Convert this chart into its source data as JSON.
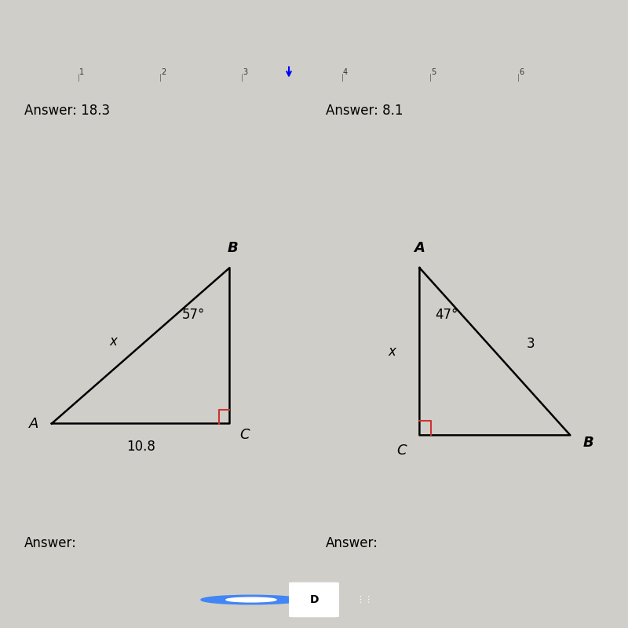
{
  "bg_color": "#d0cec9",
  "toolbar_color": "#c8c5c0",
  "paper_color": "#e8e6e2",
  "border_color": "#444444",
  "top_left_answer": "Answer: 18.3",
  "top_right_answer": "Answer: 8.1",
  "bottom_left_answer": "Answer:",
  "bottom_right_answer": "Answer:",
  "font_size_answer": 12,
  "font_size_vertex": 13,
  "font_size_labels": 12,
  "ruler_color": "#c8c5c0",
  "ruler_text_color": "#444444"
}
